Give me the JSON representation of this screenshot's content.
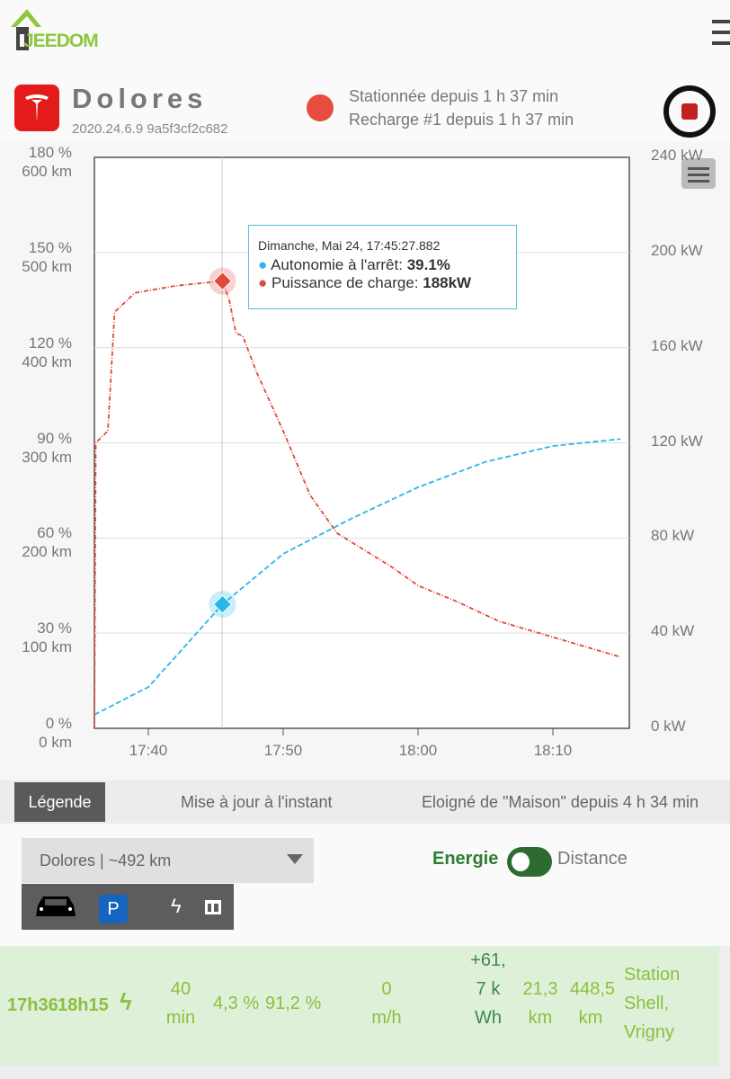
{
  "header": {
    "logo": "JEEDOM",
    "menu_icon": "hamburger-icon"
  },
  "vehicle": {
    "name": "Dolores",
    "version": "2020.24.6.9 9a5f3cf2c682",
    "status_line1": "Stationnée depuis 1 h 37 min",
    "status_line2": "Recharge #1 depuis 1 h 37 min",
    "status_color": "#e84c3d"
  },
  "chart_data": {
    "type": "line",
    "x_ticks": [
      "17:40",
      "17:50",
      "18:00",
      "18:10"
    ],
    "x_range_minutes": [
      -4,
      35
    ],
    "left_axis_pct": [
      "0 %",
      "30 %",
      "60 %",
      "90 %",
      "120 %",
      "150 %",
      "180 %"
    ],
    "left_axis_km": [
      "0 km",
      "100 km",
      "200 km",
      "300 km",
      "400 km",
      "500 km",
      "600 km"
    ],
    "right_axis": [
      "0 kW",
      "40 kW",
      "80 kW",
      "120 kW",
      "160 kW",
      "200 kW",
      "240 kW"
    ],
    "series": [
      {
        "name": "Autonomie à l'arrêt",
        "unit": "%",
        "color": "#29b6e8",
        "x_min": [
          -4,
          0,
          5.5,
          10,
          15,
          20,
          25,
          30,
          35
        ],
        "values": [
          4.3,
          13,
          39.1,
          55,
          66,
          76,
          84,
          89,
          91.2
        ]
      },
      {
        "name": "Puissance de charge",
        "unit": "kW",
        "color": "#e04a3a",
        "x_min": [
          -4,
          -3.9,
          -3,
          -2.5,
          -1,
          2,
          5.5,
          6,
          6.5,
          7,
          8,
          10,
          12,
          14,
          16,
          18,
          20,
          23,
          26,
          29,
          32,
          35
        ],
        "values": [
          0,
          120,
          125,
          175,
          183,
          186,
          188,
          180,
          166,
          165,
          150,
          125,
          98,
          82,
          75,
          68,
          60,
          53,
          45,
          40,
          35,
          30
        ]
      }
    ],
    "tooltip": {
      "title": "Dimanche, Mai 24, 17:45:27.882",
      "line1_label": "Autonomie à l'arrêt: ",
      "line1_value": "39.1%",
      "line2_label": "Puissance de charge: ",
      "line2_value": "188kW"
    }
  },
  "legend_bar": {
    "button": "Légende",
    "update": "Mise à jour à l'instant",
    "away": "Eloigné de \"Maison\" depuis 4 h 34 min"
  },
  "controls": {
    "select_value": "Dolores | ~492 km",
    "toggle_left": "Energie",
    "toggle_right": "Distance",
    "park_label": "P"
  },
  "trip_row": {
    "start": "17h36",
    "end": "18h15",
    "duration": "40 min",
    "soc_start": "4,3 %",
    "soc_end": "91,2 %",
    "speed": "0 m/h",
    "energy": "+61,7 kWh",
    "distance": "21,3 km",
    "odometer": "448,5 km",
    "location": "Station Shell, Vrigny"
  }
}
